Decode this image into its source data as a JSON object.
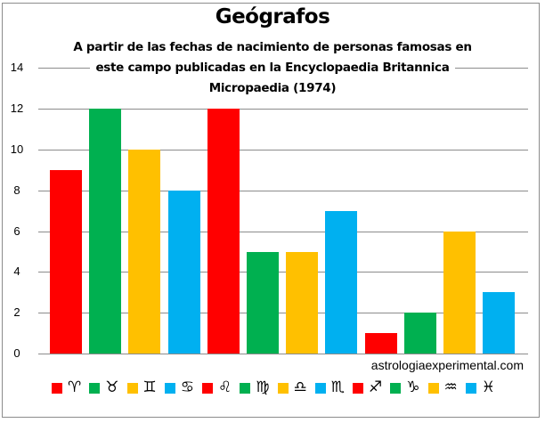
{
  "chart_data": {
    "type": "bar",
    "title": "Geógrafos",
    "subtitle": "A partir de las fechas de nacimiento de personas famosas en este campo publicadas en la Encyclopaedia Britannica Micropaedia (1974)",
    "subtitle_lines": [
      "A partir de las fechas de nacimiento de personas famosas en",
      "este campo publicadas en la Encyclopaedia Britannica",
      "Micropaedia (1974)"
    ],
    "xlabel": "",
    "ylabel": "",
    "ylim": [
      0,
      14
    ],
    "yticks": [
      0,
      2,
      4,
      6,
      8,
      10,
      12,
      14
    ],
    "grid": true,
    "legend_position": "bottom",
    "categories": [
      "Aries",
      "Tauro",
      "Géminis",
      "Cáncer",
      "Leo",
      "Virgo",
      "Libra",
      "Escorpio",
      "Sagitario",
      "Capricornio",
      "Acuario",
      "Piscis"
    ],
    "symbols": [
      "♈",
      "♉",
      "♊",
      "♋",
      "♌",
      "♍",
      "♎",
      "♏",
      "♐",
      "♑",
      "♒",
      "♓"
    ],
    "values": [
      9,
      12,
      10,
      8,
      12,
      5,
      5,
      7,
      1,
      2,
      6,
      3
    ],
    "colors": [
      "#ff0000",
      "#00b050",
      "#ffc000",
      "#00b0f0",
      "#ff0000",
      "#00b050",
      "#ffc000",
      "#00b0f0",
      "#ff0000",
      "#00b050",
      "#ffc000",
      "#00b0f0"
    ],
    "annotation": "astrologiaexperimental.com"
  },
  "colors": {
    "fire": "#ff0000",
    "earth": "#00b050",
    "air": "#ffc000",
    "water": "#00b0f0",
    "grid": "#8c8c8c"
  }
}
